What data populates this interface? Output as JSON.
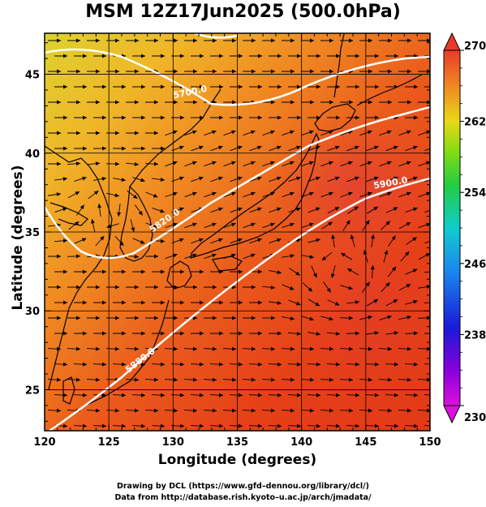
{
  "title": "MSM 12Z17Jun2025 (500.0hPa)",
  "xlabel": "Longitude (degrees)",
  "ylabel": "Latitude  (degrees)",
  "credits": {
    "line1": "Drawing by DCL (https://www.gfd–dennou.org/library/dcl/)",
    "line2": "Data from http://database.rish.kyoto–u.ac.jp/arch/jmadata/"
  },
  "map": {
    "lon_range": [
      120,
      150
    ],
    "lat_range": [
      22.4,
      47.6
    ],
    "xticks": [
      "120",
      "125",
      "130",
      "135",
      "140",
      "145",
      "150"
    ],
    "yticks": [
      "25",
      "30",
      "35",
      "40",
      "45"
    ],
    "contours": [
      {
        "label": "5700.0",
        "color": "#ffffff"
      },
      {
        "label": "5820.0",
        "color": "#ffffff"
      },
      {
        "label": "5880.0",
        "color": "#ffffff"
      },
      {
        "label": "5900.0",
        "color": "#ffffff"
      }
    ]
  },
  "colorbar": {
    "ticks": [
      "270",
      "262",
      "254",
      "246",
      "238",
      "230"
    ],
    "range": [
      230,
      270
    ],
    "colors": [
      "#cc00cc",
      "#4400ff",
      "#0044ff",
      "#00ccff",
      "#00dd44",
      "#66dd00",
      "#ffdd00",
      "#ff9900",
      "#ff4400",
      "#ee2222"
    ]
  }
}
